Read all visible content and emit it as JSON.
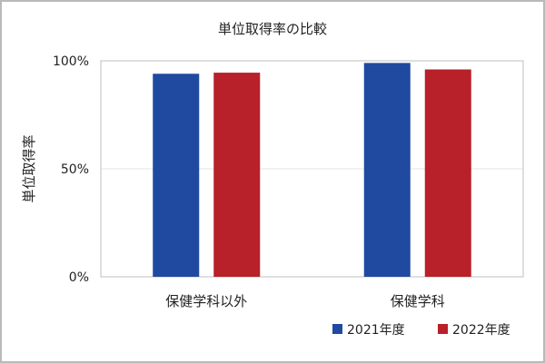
{
  "chart_data": {
    "type": "bar",
    "title": "単位取得率の比較",
    "ylabel": "単位取得率",
    "xlabel": "",
    "categories": [
      "保健学科以外",
      "保健学科"
    ],
    "series": [
      {
        "name": "2021年度",
        "values": [
          94,
          99
        ],
        "color": "#1f4aa0"
      },
      {
        "name": "2022年度",
        "values": [
          94.5,
          96
        ],
        "color": "#b8202a"
      }
    ],
    "ylim": [
      0,
      100
    ],
    "yticks": [
      0,
      50,
      100
    ],
    "yticklabels": [
      "0%",
      "50%",
      "100%"
    ],
    "grid": true,
    "legend": "bottom-right"
  }
}
